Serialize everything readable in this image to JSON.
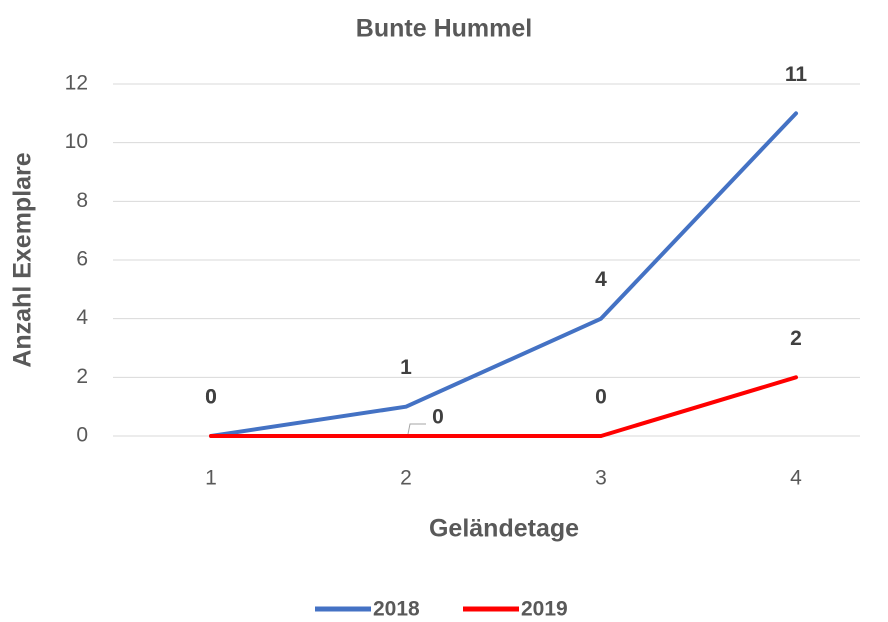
{
  "chart_data": {
    "type": "line",
    "title": "Bunte Hummel",
    "xlabel": "Geländetage",
    "ylabel": "Anzahl Exemplare",
    "categories": [
      1,
      2,
      3,
      4
    ],
    "series": [
      {
        "name": "2018",
        "color": "#4472c4",
        "values": [
          0,
          1,
          4,
          11
        ]
      },
      {
        "name": "2019",
        "color": "#ff0000",
        "values": [
          0,
          0,
          0,
          2
        ]
      }
    ],
    "ylim": [
      0,
      12
    ],
    "yticks": [
      0,
      2,
      4,
      6,
      8,
      10,
      12
    ],
    "grid": true,
    "legend": "bottom"
  }
}
